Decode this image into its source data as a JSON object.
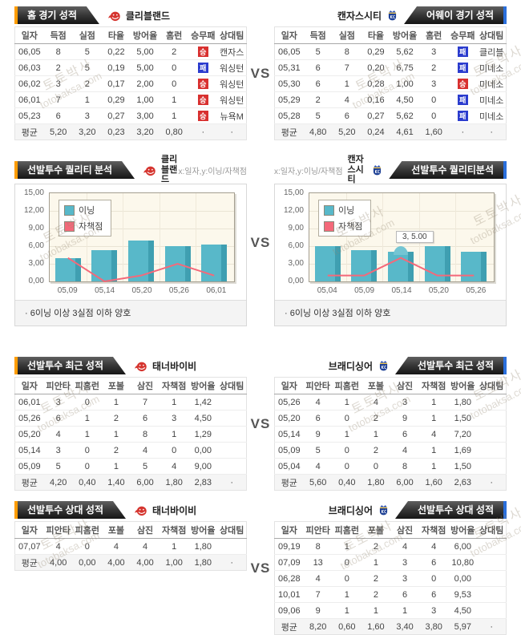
{
  "page": {
    "vs_label": "VS"
  },
  "watermark": {
    "korean": "토토박사",
    "english": "totobaksa.com"
  },
  "icons": {
    "home_team_logo": "cleveland-indians-logo",
    "away_team_logo": "kansascity-royals-logo"
  },
  "colors": {
    "accent_orange": "#ff9c00",
    "accent_blue": "#2a6fdc",
    "win": "#d8302f",
    "loss": "#2b3cce",
    "bar": "#58b8c9",
    "line": "#f4697a"
  },
  "badges": {
    "W": {
      "label": "승",
      "bg": "#d8302f"
    },
    "L": {
      "label": "패",
      "bg": "#2b3cce"
    }
  },
  "sections": {
    "game": {
      "left": {
        "title": "홈 경기 성적",
        "team": "클리블랜드",
        "table": {
          "columns": [
            "일자",
            "득점",
            "실점",
            "타율",
            "방어율",
            "홈런",
            "승무패",
            "상대팀"
          ],
          "rows": [
            [
              "06,05",
              "8",
              "5",
              "0,22",
              "5,00",
              "2",
              "[W]",
              "캔자스"
            ],
            [
              "06,03",
              "2",
              "5",
              "0,19",
              "5,00",
              "0",
              "[L]",
              "워싱턴"
            ],
            [
              "06,02",
              "3",
              "2",
              "0,17",
              "2,00",
              "0",
              "[W]",
              "워싱턴"
            ],
            [
              "06,01",
              "7",
              "1",
              "0,29",
              "1,00",
              "1",
              "[W]",
              "워싱턴"
            ],
            [
              "05,23",
              "6",
              "3",
              "0,27",
              "3,00",
              "1",
              "[W]",
              "뉴욕M"
            ]
          ],
          "avg": [
            "평균",
            "5,20",
            "3,20",
            "0,23",
            "3,20",
            "0,80",
            "·",
            "·"
          ]
        }
      },
      "right": {
        "title": "어웨이 경기 성적",
        "team": "캔자스시티",
        "table": {
          "columns": [
            "일자",
            "득점",
            "실점",
            "타율",
            "방어율",
            "홈런",
            "승무패",
            "상대팀"
          ],
          "rows": [
            [
              "06,05",
              "5",
              "8",
              "0,29",
              "5,62",
              "3",
              "[L]",
              "클리블"
            ],
            [
              "05,31",
              "6",
              "7",
              "0,20",
              "6,75",
              "2",
              "[L]",
              "미네소"
            ],
            [
              "05,30",
              "6",
              "1",
              "0,28",
              "1,00",
              "3",
              "[W]",
              "미네소"
            ],
            [
              "05,29",
              "2",
              "4",
              "0,16",
              "4,50",
              "0",
              "[L]",
              "미네소"
            ],
            [
              "05,28",
              "5",
              "6",
              "0,27",
              "5,62",
              "0",
              "[L]",
              "미네소"
            ]
          ],
          "avg": [
            "평균",
            "4,80",
            "5,20",
            "0,24",
            "4,61",
            "1,60",
            "·",
            "·"
          ]
        }
      }
    },
    "quality": {
      "left": {
        "title": "선발투수 퀄리티 분석",
        "team": "클리블랜드",
        "axis_note": "x:일자,y:이닝/자책점",
        "footnote": "·  6이닝 이상 3실점 이하 양호"
      },
      "right": {
        "title": "선발투수 퀄리티분석",
        "team": "캔자스시티",
        "axis_note": "x:일자,y:이닝/자책점",
        "footnote": "·  6이닝 이상 3실점 이하 양호"
      }
    },
    "recent": {
      "left": {
        "title": "선발투수 최근 성적",
        "player": "태너바이비",
        "table": {
          "columns": [
            "일자",
            "피안타",
            "피홈런",
            "포볼",
            "삼진",
            "자책점",
            "방어율",
            "상대팀"
          ],
          "rows": [
            [
              "06,01",
              "3",
              "0",
              "1",
              "7",
              "1",
              "1,42",
              ""
            ],
            [
              "05,26",
              "6",
              "1",
              "2",
              "6",
              "3",
              "4,50",
              ""
            ],
            [
              "05,20",
              "4",
              "1",
              "1",
              "8",
              "1",
              "1,29",
              ""
            ],
            [
              "05,14",
              "3",
              "0",
              "2",
              "4",
              "0",
              "0,00",
              ""
            ],
            [
              "05,09",
              "5",
              "0",
              "1",
              "5",
              "4",
              "9,00",
              ""
            ]
          ],
          "avg": [
            "평균",
            "4,20",
            "0,40",
            "1,40",
            "6,00",
            "1,80",
            "2,83",
            "·"
          ]
        }
      },
      "right": {
        "title": "선발투수 최근 성적",
        "player": "브래디싱어",
        "table": {
          "columns": [
            "일자",
            "피안타",
            "피홈런",
            "포볼",
            "삼진",
            "자책점",
            "방어율",
            "상대팀"
          ],
          "rows": [
            [
              "05,26",
              "4",
              "1",
              "4",
              "3",
              "1",
              "1,80",
              ""
            ],
            [
              "05,20",
              "6",
              "0",
              "2",
              "9",
              "1",
              "1,50",
              ""
            ],
            [
              "05,14",
              "9",
              "1",
              "1",
              "6",
              "4",
              "7,20",
              ""
            ],
            [
              "05,09",
              "5",
              "0",
              "2",
              "4",
              "1",
              "1,69",
              ""
            ],
            [
              "05,04",
              "4",
              "0",
              "0",
              "8",
              "1",
              "1,50",
              ""
            ]
          ],
          "avg": [
            "평균",
            "5,60",
            "0,40",
            "1,80",
            "6,00",
            "1,60",
            "2,63",
            "·"
          ]
        }
      }
    },
    "versus": {
      "left": {
        "title": "선발투수 상대 성적",
        "player": "태너바이비",
        "table": {
          "columns": [
            "일자",
            "피안타",
            "피홈런",
            "포볼",
            "삼진",
            "자책점",
            "방어율",
            "상대팀"
          ],
          "rows": [
            [
              "07,07",
              "4",
              "0",
              "4",
              "4",
              "1",
              "1,80",
              ""
            ]
          ],
          "avg": [
            "평균",
            "4,00",
            "0,00",
            "4,00",
            "4,00",
            "1,00",
            "1,80",
            "·"
          ]
        }
      },
      "right": {
        "title": "선발투수 상대 성적",
        "player": "브래디싱어",
        "table": {
          "columns": [
            "일자",
            "피안타",
            "피홈런",
            "포볼",
            "삼진",
            "자책점",
            "방어율",
            "상대팀"
          ],
          "rows": [
            [
              "09,19",
              "8",
              "1",
              "2",
              "4",
              "4",
              "6,00",
              ""
            ],
            [
              "07,09",
              "13",
              "0",
              "1",
              "3",
              "6",
              "10,80",
              ""
            ],
            [
              "06,28",
              "4",
              "0",
              "2",
              "3",
              "0",
              "0,00",
              ""
            ],
            [
              "10,01",
              "7",
              "1",
              "2",
              "6",
              "6",
              "9,53",
              ""
            ],
            [
              "09,06",
              "9",
              "1",
              "1",
              "1",
              "3",
              "4,50",
              ""
            ]
          ],
          "avg": [
            "평균",
            "8,20",
            "0,60",
            "1,60",
            "3,40",
            "3,80",
            "5,97",
            "·"
          ]
        }
      }
    }
  },
  "chart_data": [
    {
      "type": "bar",
      "title": "선발투수 퀄리티 분석 - 클리블랜드",
      "categories": [
        "05,09",
        "05,14",
        "05,20",
        "05,26",
        "06,01"
      ],
      "series": [
        {
          "name": "이닝",
          "type": "bar",
          "color": "#58b8c9",
          "values": [
            4.0,
            5.33,
            7.0,
            6.0,
            6.33
          ]
        },
        {
          "name": "자책점",
          "type": "line",
          "color": "#f4697a",
          "values": [
            4,
            0,
            1,
            3,
            1
          ]
        }
      ],
      "xlabel": "일자",
      "ylabel": "이닝/자책점",
      "ylim": [
        0,
        15
      ],
      "yticks": [
        "0,00",
        "3,00",
        "6,00",
        "9,00",
        "12,00",
        "15,00"
      ],
      "grid": true,
      "legend_position": "top-left"
    },
    {
      "type": "bar",
      "title": "선발투수 퀄리티분석 - 캔자스시티",
      "categories": [
        "05,04",
        "05,09",
        "05,14",
        "05,20",
        "05,26"
      ],
      "series": [
        {
          "name": "이닝",
          "type": "bar",
          "color": "#58b8c9",
          "values": [
            6.0,
            5.33,
            5.0,
            6.0,
            5.0
          ]
        },
        {
          "name": "자책점",
          "type": "line",
          "color": "#f4697a",
          "values": [
            1,
            1,
            4,
            1,
            1
          ]
        }
      ],
      "xlabel": "일자",
      "ylabel": "이닝/자책점",
      "ylim": [
        0,
        15
      ],
      "yticks": [
        "0,00",
        "3,00",
        "6,00",
        "9,00",
        "12,00",
        "15,00"
      ],
      "grid": true,
      "legend_position": "top-left",
      "tooltip": {
        "index": 2,
        "text": "3, 5.00"
      }
    }
  ]
}
